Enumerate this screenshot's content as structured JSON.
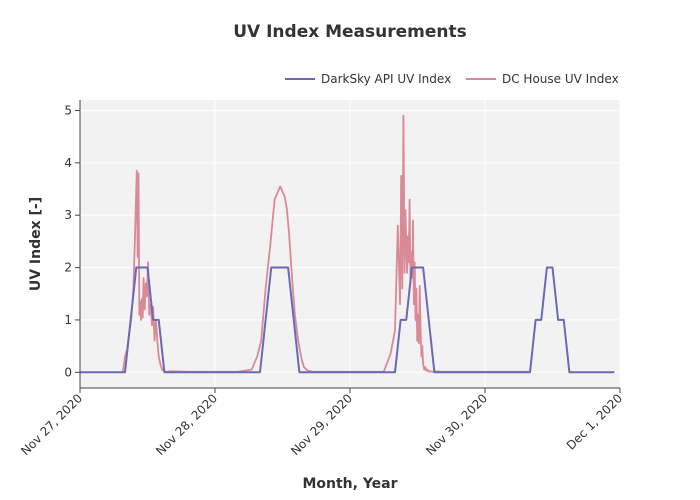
{
  "chart_data": {
    "type": "line",
    "title": "UV Index Measurements",
    "xlabel": "Month, Year",
    "ylabel": "UV Index [-]",
    "x_unit": "hours since Nov 27, 2020 00:00",
    "xlim": [
      0,
      96
    ],
    "ylim": [
      -0.3,
      5.2
    ],
    "grid": true,
    "legend_position": "top-right",
    "x_ticks": [
      {
        "value": 0,
        "label": "Nov 27, 2020"
      },
      {
        "value": 24,
        "label": "Nov 28, 2020"
      },
      {
        "value": 48,
        "label": "Nov 29, 2020"
      },
      {
        "value": 72,
        "label": "Nov 30, 2020"
      },
      {
        "value": 96,
        "label": "Dec 1, 2020"
      }
    ],
    "y_ticks": [
      {
        "value": 0,
        "label": "0"
      },
      {
        "value": 1,
        "label": "1"
      },
      {
        "value": 2,
        "label": "2"
      },
      {
        "value": 3,
        "label": "3"
      },
      {
        "value": 4,
        "label": "4"
      },
      {
        "value": 5,
        "label": "5"
      }
    ],
    "series": [
      {
        "name": "DarkSky API UV Index",
        "color": "#6a6ab4",
        "x": [
          0,
          8,
          9,
          10,
          11,
          12,
          13,
          14,
          15,
          16,
          17,
          32,
          33,
          34,
          35,
          36,
          37,
          38,
          39,
          40,
          41,
          56,
          57,
          58,
          59,
          60,
          61,
          62,
          63,
          64,
          65,
          80,
          81,
          82,
          83,
          84,
          85,
          86,
          87,
          88,
          95
        ],
        "y": [
          0,
          0,
          1,
          2,
          2,
          2,
          1,
          1,
          0,
          0,
          0,
          0,
          1,
          2,
          2,
          2,
          2,
          1,
          0,
          0,
          0,
          0,
          1,
          1,
          2,
          2,
          2,
          1,
          0,
          0,
          0,
          0,
          1,
          1,
          2,
          2,
          1,
          1,
          0,
          0,
          0
        ]
      },
      {
        "name": "DC House UV Index",
        "color": "#d98a96",
        "x": [
          7.6,
          8,
          8.4,
          8.8,
          9.1,
          9.5,
          9.8,
          10.1,
          10.25,
          10.4,
          10.55,
          10.7,
          10.85,
          11.0,
          11.15,
          11.3,
          11.5,
          11.7,
          11.9,
          12.1,
          12.3,
          12.55,
          12.8,
          13.0,
          13.25,
          13.5,
          13.75,
          14.0,
          14.3,
          14.6,
          15,
          15.5,
          16,
          20,
          28,
          30.5,
          31.5,
          32.2,
          33,
          33.8,
          34.6,
          35.2,
          35.6,
          36.0,
          36.4,
          36.8,
          37.2,
          37.7,
          38.2,
          38.8,
          39.3,
          39.8,
          40.5,
          41.5,
          45,
          54,
          55.2,
          56.0,
          56.5,
          56.9,
          57.1,
          57.3,
          57.5,
          57.7,
          57.85,
          58.0,
          58.15,
          58.3,
          58.45,
          58.6,
          58.75,
          58.9,
          59.05,
          59.2,
          59.35,
          59.5,
          59.65,
          59.8,
          59.95,
          60.1,
          60.25,
          60.4,
          60.55,
          60.7,
          60.85,
          61.0,
          61.2,
          61.4,
          61.6,
          61.8,
          62.0,
          62.3,
          62.6,
          63,
          63.5,
          64,
          70,
          80
        ],
        "y": [
          0,
          0.3,
          0.45,
          0.8,
          1.0,
          1.6,
          2.7,
          3.85,
          2.2,
          3.8,
          1.1,
          1.35,
          1.0,
          1.4,
          1.05,
          1.8,
          1.2,
          1.7,
          1.45,
          2.1,
          1.1,
          1.3,
          0.9,
          1.25,
          0.6,
          1.0,
          0.6,
          0.3,
          0.15,
          0.05,
          0.02,
          0.01,
          0.02,
          0.01,
          0.01,
          0.05,
          0.3,
          0.6,
          1.6,
          2.4,
          3.3,
          3.45,
          3.55,
          3.45,
          3.35,
          3.1,
          2.6,
          1.8,
          1.1,
          0.6,
          0.3,
          0.1,
          0.03,
          0.01,
          0.01,
          0.01,
          0.35,
          0.8,
          2.8,
          1.3,
          3.75,
          1.6,
          4.9,
          1.9,
          3.1,
          2.5,
          1.9,
          2.6,
          2.1,
          3.3,
          1.7,
          2.3,
          1.8,
          2.9,
          1.3,
          2.1,
          1.0,
          1.6,
          0.6,
          1.1,
          0.55,
          1.65,
          0.8,
          0.3,
          0.5,
          0.15,
          0.05,
          0.1,
          0.03,
          0.05,
          0.01,
          0.02,
          0.01,
          0.01,
          0.02,
          0.01,
          0.01,
          0.01
        ]
      }
    ]
  }
}
